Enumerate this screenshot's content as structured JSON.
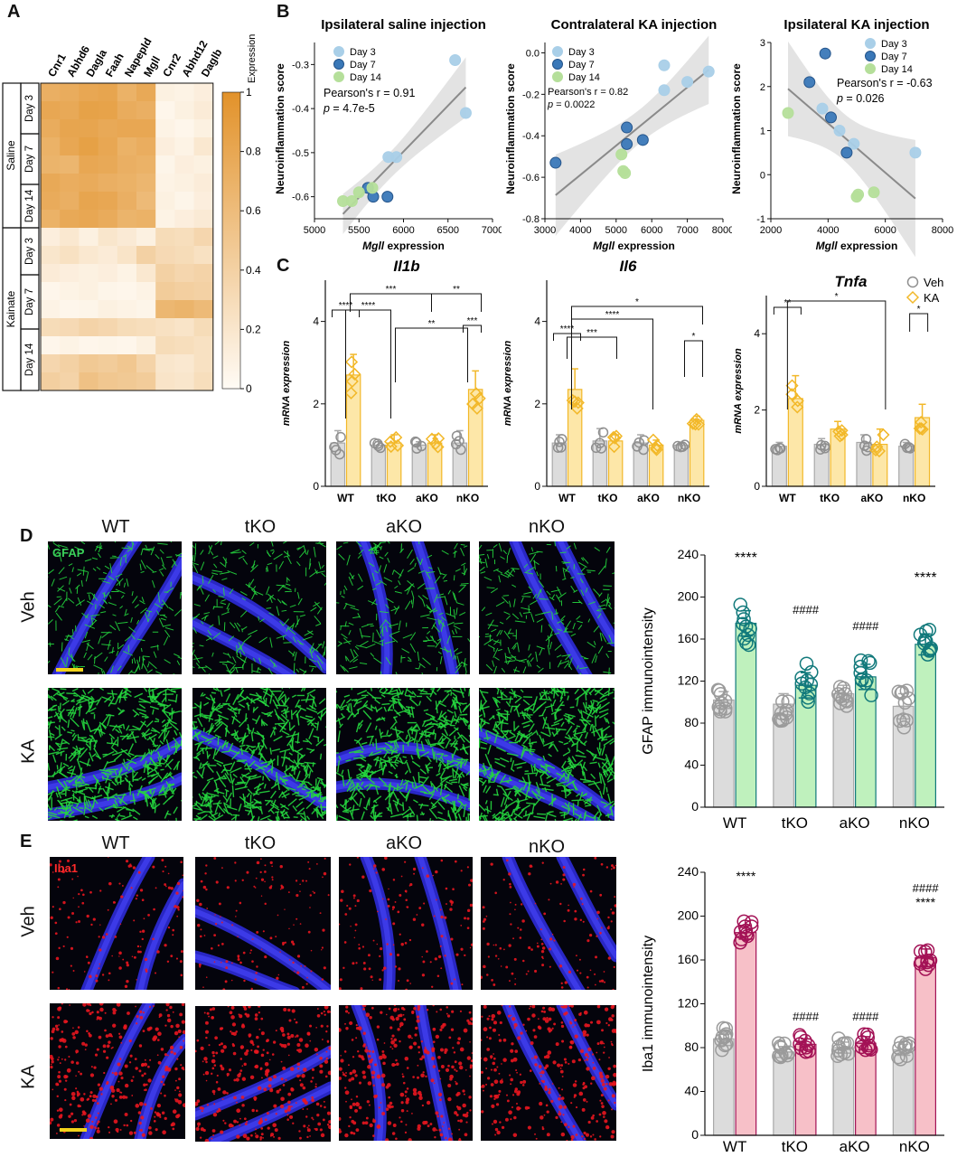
{
  "panels": {
    "A": "A",
    "B": "B",
    "C": "C",
    "D": "D",
    "E": "E"
  },
  "heatmap": {
    "genes": [
      "Cnr1",
      "Abhd6",
      "Dagla",
      "Faah",
      "Napepld",
      "Mgll",
      "Cnr2",
      "Abhd12",
      "Daglb"
    ],
    "groups": [
      {
        "label": "Saline",
        "days": [
          "Day 3",
          "Day 7",
          "Day 14"
        ]
      },
      {
        "label": "Kainate",
        "days": [
          "Day 3",
          "Day 7",
          "Day 14"
        ]
      }
    ],
    "colorbar_title": "Expression",
    "colorbar_ticks": [
      "1",
      "0.8",
      "0.6",
      "0.4",
      "0.2",
      "0"
    ],
    "values": [
      [
        0.72,
        0.75,
        0.8,
        0.82,
        0.7,
        0.78,
        0.1,
        0.08,
        0.12
      ],
      [
        0.8,
        0.78,
        0.85,
        0.84,
        0.75,
        0.72,
        0.05,
        0.1,
        0.15
      ],
      [
        0.75,
        0.82,
        0.82,
        0.78,
        0.8,
        0.8,
        0.08,
        0.05,
        0.1
      ],
      [
        0.7,
        0.8,
        0.86,
        0.8,
        0.7,
        0.74,
        0.12,
        0.08,
        0.18
      ],
      [
        0.68,
        0.66,
        0.8,
        0.78,
        0.72,
        0.7,
        0.06,
        0.12,
        0.1
      ],
      [
        0.78,
        0.74,
        0.76,
        0.72,
        0.7,
        0.66,
        0.08,
        0.1,
        0.14
      ],
      [
        0.76,
        0.72,
        0.82,
        0.8,
        0.72,
        0.62,
        0.1,
        0.06,
        0.12
      ],
      [
        0.7,
        0.78,
        0.8,
        0.76,
        0.68,
        0.7,
        0.08,
        0.12,
        0.16
      ],
      [
        0.12,
        0.18,
        0.1,
        0.2,
        0.16,
        0.1,
        0.3,
        0.28,
        0.35
      ],
      [
        0.2,
        0.25,
        0.18,
        0.15,
        0.22,
        0.4,
        0.32,
        0.3,
        0.25
      ],
      [
        0.15,
        0.12,
        0.1,
        0.12,
        0.08,
        0.18,
        0.4,
        0.35,
        0.38
      ],
      [
        0.05,
        0.08,
        0.1,
        0.06,
        0.05,
        0.08,
        0.45,
        0.42,
        0.4
      ],
      [
        0.08,
        0.05,
        0.06,
        0.1,
        0.08,
        0.06,
        0.65,
        0.68,
        0.62
      ],
      [
        0.3,
        0.32,
        0.38,
        0.35,
        0.3,
        0.28,
        0.25,
        0.22,
        0.3
      ],
      [
        0.05,
        0.08,
        0.05,
        0.06,
        0.05,
        0.1,
        0.3,
        0.28,
        0.25
      ],
      [
        0.35,
        0.4,
        0.48,
        0.45,
        0.5,
        0.38,
        0.2,
        0.18,
        0.25
      ],
      [
        0.42,
        0.38,
        0.55,
        0.5,
        0.48,
        0.45,
        0.22,
        0.2,
        0.28
      ]
    ]
  },
  "scatter_legend": [
    "Day 3",
    "Day 7",
    "Day 14"
  ],
  "scatter_colors": {
    "Day 3": "#a9cfe8",
    "Day 7": "#3a78b8",
    "Day 14": "#b5df9a"
  },
  "chart_data": [
    {
      "type": "scatter",
      "title": "Ipsilateral saline injection",
      "xlabel": "Mgll expression",
      "ylabel": "Neuroinflammation score",
      "xlim": [
        5000,
        7000
      ],
      "ylim": [
        -0.65,
        -0.25
      ],
      "xticks": [
        "5000",
        "6000",
        "7000"
      ],
      "xticks_minor": [
        "5500",
        "6500"
      ],
      "yticks": [
        "-0.3",
        "-0.4",
        "-0.5",
        "-0.6"
      ],
      "stat_r": "Pearson's r = 0.91",
      "stat_p": "p = 4.7e-5",
      "points": [
        {
          "x": 6580,
          "y": -0.29,
          "s": "Day 3"
        },
        {
          "x": 6700,
          "y": -0.41,
          "s": "Day 3"
        },
        {
          "x": 5920,
          "y": -0.51,
          "s": "Day 3"
        },
        {
          "x": 5830,
          "y": -0.51,
          "s": "Day 3"
        },
        {
          "x": 5600,
          "y": -0.58,
          "s": "Day 7"
        },
        {
          "x": 5660,
          "y": -0.6,
          "s": "Day 7"
        },
        {
          "x": 5820,
          "y": -0.6,
          "s": "Day 7"
        },
        {
          "x": 5320,
          "y": -0.61,
          "s": "Day 14"
        },
        {
          "x": 5420,
          "y": -0.61,
          "s": "Day 14"
        },
        {
          "x": 5650,
          "y": -0.58,
          "s": "Day 14"
        },
        {
          "x": 5500,
          "y": -0.59,
          "s": "Day 14"
        }
      ]
    },
    {
      "type": "scatter",
      "title": "Contralateral KA injection",
      "xlabel": "Mgll expression",
      "ylabel": "Neuroinflammation score",
      "xlim": [
        3000,
        8000
      ],
      "ylim": [
        -0.8,
        0.05
      ],
      "xticks": [
        "3000",
        "4000",
        "5000",
        "6000",
        "7000",
        "8000"
      ],
      "yticks": [
        "0.0",
        "-0.2",
        "-0.4",
        "-0.6",
        "-0.8"
      ],
      "stat_r": "Pearson's r = 0.82",
      "stat_p": "p = 0.0022",
      "points": [
        {
          "x": 6350,
          "y": -0.06,
          "s": "Day 3"
        },
        {
          "x": 7600,
          "y": -0.09,
          "s": "Day 3"
        },
        {
          "x": 7000,
          "y": -0.14,
          "s": "Day 3"
        },
        {
          "x": 6350,
          "y": -0.18,
          "s": "Day 3"
        },
        {
          "x": 3300,
          "y": -0.53,
          "s": "Day 7"
        },
        {
          "x": 5300,
          "y": -0.36,
          "s": "Day 7"
        },
        {
          "x": 5750,
          "y": -0.42,
          "s": "Day 7"
        },
        {
          "x": 5300,
          "y": -0.44,
          "s": "Day 7"
        },
        {
          "x": 5150,
          "y": -0.49,
          "s": "Day 14"
        },
        {
          "x": 5200,
          "y": -0.57,
          "s": "Day 14"
        },
        {
          "x": 5250,
          "y": -0.58,
          "s": "Day 14"
        }
      ]
    },
    {
      "type": "scatter",
      "title": "Ipsilateral KA injection",
      "xlabel": "Mgll expression",
      "ylabel": "Neuroinflammation score",
      "xlim": [
        2000,
        8000
      ],
      "ylim": [
        -1,
        3
      ],
      "xticks": [
        "2000",
        "4000",
        "6000",
        "8000"
      ],
      "yticks": [
        "3",
        "2",
        "1",
        "0",
        "-1"
      ],
      "stat_r": "Pearson's r = -0.63",
      "stat_p": "p = 0.026",
      "points": [
        {
          "x": 3800,
          "y": 1.5,
          "s": "Day 3"
        },
        {
          "x": 4900,
          "y": 0.7,
          "s": "Day 3"
        },
        {
          "x": 4400,
          "y": 1.0,
          "s": "Day 3"
        },
        {
          "x": 7050,
          "y": 0.5,
          "s": "Day 3"
        },
        {
          "x": 3900,
          "y": 2.75,
          "s": "Day 7"
        },
        {
          "x": 3350,
          "y": 2.1,
          "s": "Day 7"
        },
        {
          "x": 4100,
          "y": 1.3,
          "s": "Day 7"
        },
        {
          "x": 4650,
          "y": 0.5,
          "s": "Day 7"
        },
        {
          "x": 2600,
          "y": 1.4,
          "s": "Day 14"
        },
        {
          "x": 5050,
          "y": -0.45,
          "s": "Day 14"
        },
        {
          "x": 5600,
          "y": -0.4,
          "s": "Day 14"
        },
        {
          "x": 5000,
          "y": -0.5,
          "s": "Day 14"
        }
      ]
    },
    {
      "type": "bar",
      "title": "Il1b",
      "ylabel": "mRNA expression",
      "categories": [
        "WT",
        "tKO",
        "aKO",
        "nKO"
      ],
      "ylim": [
        0,
        5
      ],
      "yticks": [
        "0",
        "2",
        "4"
      ],
      "series": [
        {
          "name": "Veh",
          "values": [
            1.05,
            1.0,
            1.0,
            1.05
          ],
          "err": [
            0.3,
            0.08,
            0.08,
            0.3
          ]
        },
        {
          "name": "KA",
          "values": [
            2.7,
            1.05,
            1.05,
            2.35
          ],
          "err": [
            0.5,
            0.2,
            0.2,
            0.45
          ]
        }
      ],
      "sig": [
        "****",
        "****",
        "***",
        "**",
        "**",
        "***"
      ]
    },
    {
      "type": "bar",
      "title": "Il6",
      "ylabel": "mRNA expression",
      "categories": [
        "WT",
        "tKO",
        "aKO",
        "nKO"
      ],
      "ylim": [
        0,
        5
      ],
      "yticks": [
        "0",
        "2",
        "4"
      ],
      "series": [
        {
          "name": "Veh",
          "values": [
            1.05,
            1.1,
            1.05,
            1.0
          ],
          "err": [
            0.2,
            0.3,
            0.2,
            0.05
          ]
        },
        {
          "name": "KA",
          "values": [
            2.35,
            1.1,
            1.0,
            1.6
          ],
          "err": [
            0.5,
            0.15,
            0.12,
            0.1
          ]
        }
      ],
      "sig": [
        "****",
        "***",
        "****",
        "*",
        "*"
      ]
    },
    {
      "type": "bar",
      "title": "Tnfa",
      "ylabel": "mRNA expression",
      "categories": [
        "WT",
        "tKO",
        "aKO",
        "nKO"
      ],
      "ylim": [
        0,
        5
      ],
      "yticks": [
        "0",
        "2",
        "4"
      ],
      "series": [
        {
          "name": "Veh",
          "values": [
            1.05,
            1.1,
            1.15,
            1.05
          ],
          "err": [
            0.1,
            0.15,
            0.2,
            0.1
          ]
        },
        {
          "name": "KA",
          "values": [
            2.3,
            1.5,
            1.1,
            1.8
          ],
          "err": [
            0.6,
            0.2,
            0.4,
            0.35
          ]
        }
      ],
      "legend": [
        "Veh",
        "KA"
      ],
      "sig": [
        "**",
        "*",
        "*"
      ]
    },
    {
      "type": "bar",
      "ylabel": "GFAP immunointensity",
      "categories": [
        "WT",
        "tKO",
        "aKO",
        "nKO"
      ],
      "ylim": [
        0,
        240
      ],
      "yticks": [
        "0",
        "40",
        "80",
        "120",
        "160",
        "200",
        "240"
      ],
      "series": [
        {
          "name": "Veh",
          "values": [
            102,
            98,
            108,
            96
          ],
          "err": [
            8,
            10,
            8,
            12
          ]
        },
        {
          "name": "KA",
          "values": [
            175,
            116,
            124,
            155
          ],
          "err": [
            12,
            12,
            12,
            10
          ]
        }
      ],
      "annot": [
        "****",
        "####",
        "####",
        "****"
      ]
    },
    {
      "type": "bar",
      "ylabel": "Iba1 immunointensity",
      "categories": [
        "WT",
        "tKO",
        "aKO",
        "nKO"
      ],
      "ylim": [
        0,
        240
      ],
      "yticks": [
        "0",
        "40",
        "80",
        "120",
        "160",
        "200",
        "240"
      ],
      "series": [
        {
          "name": "Veh",
          "values": [
            88,
            76,
            80,
            78
          ],
          "err": [
            6,
            5,
            5,
            5
          ]
        },
        {
          "name": "KA",
          "values": [
            185,
            83,
            84,
            162
          ],
          "err": [
            6,
            5,
            6,
            8
          ]
        }
      ],
      "annot": [
        "****",
        "####",
        "####",
        "####",
        "****"
      ]
    }
  ],
  "micro_D": {
    "cols": [
      "WT",
      "tKO",
      "aKO",
      "nKO"
    ],
    "rows": [
      "Veh",
      "KA"
    ],
    "stain": "GFAP"
  },
  "micro_E": {
    "cols": [
      "WT",
      "tKO",
      "aKO",
      "nKO"
    ],
    "rows": [
      "Veh",
      "KA"
    ],
    "stain": "Iba1"
  }
}
